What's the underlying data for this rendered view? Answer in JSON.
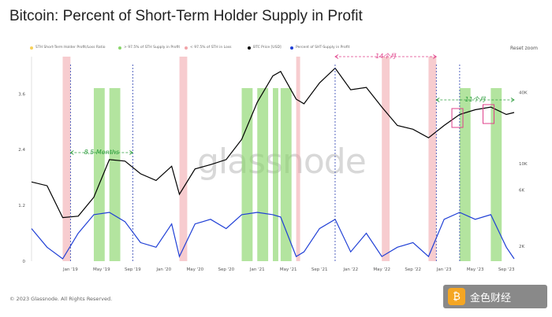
{
  "title": "Bitcoin: Percent of Short-Term Holder Supply in Profit",
  "reset_label": "Reset zoom",
  "watermark": "glassnode",
  "footer": "© 2023 Glassnode. All Rights Reserved.",
  "badge": {
    "icon": "exchange-logo-icon",
    "text": "金色财经"
  },
  "colors": {
    "price": "#000000",
    "percent": "#1f3fd6",
    "profit_band": "#8ad66b",
    "loss_band": "#f1a3a8",
    "annotation": "#e0408a",
    "annotation_green": "#2e9e3e",
    "guide": "#2a3fb0"
  },
  "legend": [
    {
      "label": "STH Short-Term Holder Profit/Loss Ratio",
      "color": "#f7d15a"
    },
    {
      "label": "> 97.5% of STH Supply in Profit",
      "color": "#8ad66b"
    },
    {
      "label": "< 97.5% of STH in Loss",
      "color": "#f1a3a8"
    },
    {
      "label": "BTC Price [USD]",
      "color": "#000000"
    },
    {
      "label": "Percent of SHT-Supply in Profit",
      "color": "#1f3fd6"
    }
  ],
  "annotations": [
    {
      "text": "8.5 Months",
      "color": "#2e9e3e"
    },
    {
      "text": "14个月",
      "color": "#e0408a"
    },
    {
      "text": "11个月",
      "color": "#2e9e3e"
    }
  ],
  "chart_data": {
    "type": "line",
    "x_ticks": [
      "Jan '19",
      "May '19",
      "Sep '19",
      "Jan '20",
      "May '20",
      "Sep '20",
      "Jan '21",
      "May '21",
      "Sep '21",
      "Jan '22",
      "May '22",
      "Sep '22",
      "Jan '23",
      "May '23",
      "Sep '23"
    ],
    "y_left_ticks": [
      "0",
      "1.2",
      "2.4",
      "3.6"
    ],
    "y_right_ticks": [
      "2K",
      "6K",
      "10K",
      "40K"
    ],
    "xlim": [
      "2018-08",
      "2023-10"
    ],
    "ylim_left": [
      0,
      4.4
    ],
    "series": [
      {
        "name": "BTC Price [USD]",
        "axis": "right-log",
        "x": [
          "2018-08",
          "2018-10",
          "2018-12",
          "2019-02",
          "2019-04",
          "2019-06",
          "2019-08",
          "2019-10",
          "2019-12",
          "2020-02",
          "2020-03",
          "2020-05",
          "2020-07",
          "2020-09",
          "2020-11",
          "2021-01",
          "2021-03",
          "2021-04",
          "2021-06",
          "2021-07",
          "2021-09",
          "2021-11",
          "2022-01",
          "2022-03",
          "2022-05",
          "2022-07",
          "2022-09",
          "2022-11",
          "2023-01",
          "2023-03",
          "2023-05",
          "2023-07",
          "2023-09",
          "2023-10"
        ],
        "values": [
          7000,
          6500,
          3500,
          3600,
          5200,
          10800,
          10500,
          8200,
          7200,
          9500,
          5500,
          9000,
          9800,
          10800,
          16000,
          33000,
          55000,
          60000,
          35000,
          32000,
          48000,
          64000,
          42000,
          44000,
          30000,
          21000,
          19500,
          16500,
          21000,
          26000,
          28500,
          30000,
          26000,
          27000
        ]
      },
      {
        "name": "Percent of SHT-Supply in Profit",
        "axis": "left",
        "x": [
          "2018-08",
          "2018-10",
          "2018-12",
          "2019-02",
          "2019-04",
          "2019-06",
          "2019-08",
          "2019-10",
          "2019-12",
          "2020-02",
          "2020-03",
          "2020-05",
          "2020-07",
          "2020-09",
          "2020-11",
          "2021-01",
          "2021-03",
          "2021-04",
          "2021-06",
          "2021-07",
          "2021-09",
          "2021-11",
          "2022-01",
          "2022-03",
          "2022-05",
          "2022-07",
          "2022-09",
          "2022-11",
          "2023-01",
          "2023-03",
          "2023-05",
          "2023-07",
          "2023-09",
          "2023-10"
        ],
        "values": [
          0.7,
          0.3,
          0.05,
          0.6,
          1.0,
          1.05,
          0.85,
          0.4,
          0.3,
          0.8,
          0.1,
          0.8,
          0.9,
          0.7,
          1.0,
          1.05,
          1.0,
          0.95,
          0.1,
          0.2,
          0.7,
          0.9,
          0.2,
          0.6,
          0.1,
          0.3,
          0.4,
          0.1,
          0.9,
          1.05,
          0.9,
          1.0,
          0.3,
          0.05
        ]
      }
    ],
    "grid": false,
    "legend_position": "top"
  }
}
